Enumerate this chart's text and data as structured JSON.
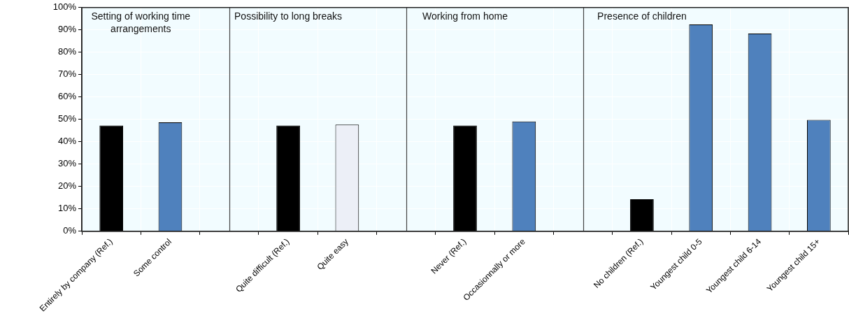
{
  "chart_data": {
    "type": "bar",
    "categories": [
      "Entirely by company (Ref.)",
      "Some control",
      null,
      "Quite difficult (Ref.)",
      "Quite easy",
      null,
      "Never (Ref.)",
      "Occasionnally or more",
      null,
      "No children (Ref.)",
      "Youngest child 0-5",
      "Youngest child 6-14",
      "Youngest child 15+"
    ],
    "values": [
      47.3,
      48.7,
      null,
      47.3,
      47.7,
      null,
      47.3,
      49.1,
      null,
      14.3,
      92.4,
      88.4,
      49.8
    ],
    "colors": [
      "#000000",
      "#4f81bd",
      null,
      "#000000",
      "#eceff7",
      null,
      "#000000",
      "#4f81bd",
      null,
      "#000000",
      "#4f81bd",
      "#4f81bd",
      "#4f81bd"
    ],
    "ylim": [
      0,
      100
    ],
    "yticks": [
      {
        "value": 0,
        "label": "0%"
      },
      {
        "value": 10,
        "label": "10%"
      },
      {
        "value": 20,
        "label": "20%"
      },
      {
        "value": 30,
        "label": "30%"
      },
      {
        "value": 40,
        "label": "40%"
      },
      {
        "value": 50,
        "label": "50%"
      },
      {
        "value": 60,
        "label": "60%"
      },
      {
        "value": 70,
        "label": "70%"
      },
      {
        "value": 80,
        "label": "80%"
      },
      {
        "value": 90,
        "label": "90%"
      },
      {
        "value": 100,
        "label": "100%"
      }
    ],
    "annotations": [
      "Setting of working time arrangements",
      "Possibility to long breaks",
      "Working from home",
      "Presence of children"
    ],
    "grid": true,
    "legend": false
  }
}
